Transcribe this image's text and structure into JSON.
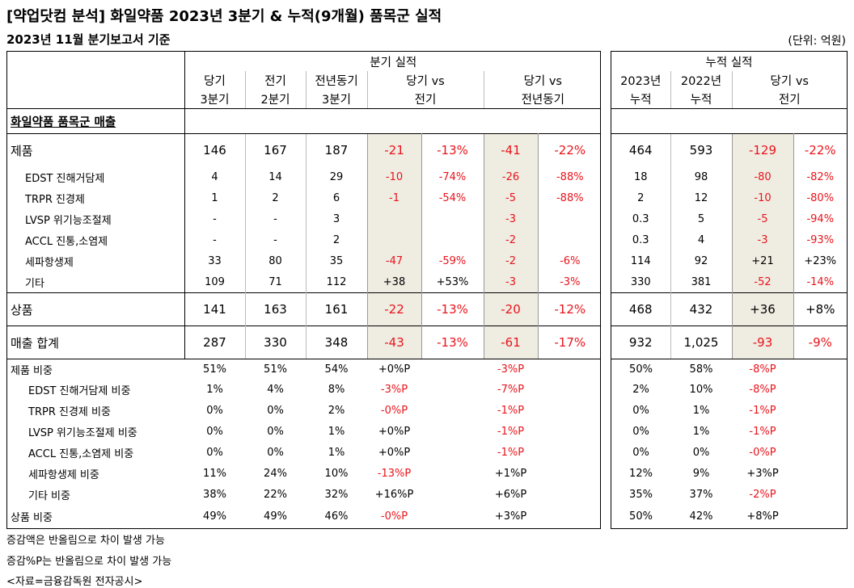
{
  "title": "[약업닷컴 분석] 화일약품 2023년 3분기 & 누적(9개월) 품목군 실적",
  "subtitle": "2023년 11월 분기보고서 기준",
  "unit": "(단위: 억원)",
  "header": {
    "quarter_group": "분기 실적",
    "cum_group": "누적 실적",
    "cur_q": [
      "당기",
      "3분기"
    ],
    "prev_q": [
      "전기",
      "2분기"
    ],
    "yoy_q": [
      "전년동기",
      "3분기"
    ],
    "vs_prev": [
      "당기 vs",
      "전기"
    ],
    "vs_yoy": [
      "당기 vs",
      "전년동기"
    ],
    "cum_2023": [
      "2023년",
      "누적"
    ],
    "cum_2022": [
      "2022년",
      "누적"
    ],
    "cum_vs": [
      "당기 vs",
      "전기"
    ]
  },
  "section_title": "화일약품 품목군 매출",
  "rows": [
    {
      "label": "제품",
      "cur": "146",
      "prev": "167",
      "yoy": "187",
      "d1": "-21",
      "p1": "-13%",
      "d2": "-41",
      "p2": "-22%",
      "c23": "464",
      "c22": "593",
      "cd": "-129",
      "cp": "-22%"
    },
    {
      "label": "EDST 진해거담제",
      "cur": "4",
      "prev": "14",
      "yoy": "29",
      "d1": "-10",
      "p1": "-74%",
      "d2": "-26",
      "p2": "-88%",
      "c23": "18",
      "c22": "98",
      "cd": "-80",
      "cp": "-82%"
    },
    {
      "label": "TRPR 진경제",
      "cur": "1",
      "prev": "2",
      "yoy": "6",
      "d1": "-1",
      "p1": "-54%",
      "d2": "-5",
      "p2": "-88%",
      "c23": "2",
      "c22": "12",
      "cd": "-10",
      "cp": "-80%"
    },
    {
      "label": "LVSP 위기능조절제",
      "cur": "-",
      "prev": "-",
      "yoy": "3",
      "d1": "",
      "p1": "",
      "d2": "-3",
      "p2": "",
      "c23": "0.3",
      "c22": "5",
      "cd": "-5",
      "cp": "-94%"
    },
    {
      "label": "ACCL 진통,소염제",
      "cur": "-",
      "prev": "-",
      "yoy": "2",
      "d1": "",
      "p1": "",
      "d2": "-2",
      "p2": "",
      "c23": "0.3",
      "c22": "4",
      "cd": "-3",
      "cp": "-93%"
    },
    {
      "label": "세파항생제",
      "cur": "33",
      "prev": "80",
      "yoy": "35",
      "d1": "-47",
      "p1": "-59%",
      "d2": "-2",
      "p2": "-6%",
      "c23": "114",
      "c22": "92",
      "cd": "+21",
      "cp": "+23%"
    },
    {
      "label": "기타",
      "cur": "109",
      "prev": "71",
      "yoy": "112",
      "d1": "+38",
      "p1": "+53%",
      "d2": "-3",
      "p2": "-3%",
      "c23": "330",
      "c22": "381",
      "cd": "-52",
      "cp": "-14%"
    },
    {
      "label": "상품",
      "cur": "141",
      "prev": "163",
      "yoy": "161",
      "d1": "-22",
      "p1": "-13%",
      "d2": "-20",
      "p2": "-12%",
      "c23": "468",
      "c22": "432",
      "cd": "+36",
      "cp": "+8%"
    },
    {
      "label": "매출 합계",
      "cur": "287",
      "prev": "330",
      "yoy": "348",
      "d1": "-43",
      "p1": "-13%",
      "d2": "-61",
      "p2": "-17%",
      "c23": "932",
      "c22": "1,025",
      "cd": "-93",
      "cp": "-9%"
    }
  ],
  "ratio_rows": [
    {
      "label": "제품 비중",
      "cur": "51%",
      "prev": "51%",
      "yoy": "54%",
      "d1": "+0%P",
      "d2": "-3%P",
      "c23": "50%",
      "c22": "58%",
      "cd": "-8%P"
    },
    {
      "label": "EDST 진해거담제 비중",
      "cur": "1%",
      "prev": "4%",
      "yoy": "8%",
      "d1": "-3%P",
      "d2": "-7%P",
      "c23": "2%",
      "c22": "10%",
      "cd": "-8%P"
    },
    {
      "label": "TRPR 진경제 비중",
      "cur": "0%",
      "prev": "0%",
      "yoy": "2%",
      "d1": "-0%P",
      "d2": "-1%P",
      "c23": "0%",
      "c22": "1%",
      "cd": "-1%P"
    },
    {
      "label": "LVSP 위기능조절제 비중",
      "cur": "0%",
      "prev": "0%",
      "yoy": "1%",
      "d1": "+0%P",
      "d2": "-1%P",
      "c23": "0%",
      "c22": "1%",
      "cd": "-1%P"
    },
    {
      "label": "ACCL 진통,소염제 비중",
      "cur": "0%",
      "prev": "0%",
      "yoy": "1%",
      "d1": "+0%P",
      "d2": "-1%P",
      "c23": "0%",
      "c22": "0%",
      "cd": "-0%P"
    },
    {
      "label": "세파항생제 비중",
      "cur": "11%",
      "prev": "24%",
      "yoy": "10%",
      "d1": "-13%P",
      "d2": "+1%P",
      "c23": "12%",
      "c22": "9%",
      "cd": "+3%P"
    },
    {
      "label": "기타 비중",
      "cur": "38%",
      "prev": "22%",
      "yoy": "32%",
      "d1": "+16%P",
      "d2": "+6%P",
      "c23": "35%",
      "c22": "37%",
      "cd": "-2%P"
    },
    {
      "label": "상품 비중",
      "cur": "49%",
      "prev": "49%",
      "yoy": "46%",
      "d1": "-0%P",
      "d2": "+3%P",
      "c23": "50%",
      "c22": "42%",
      "cd": "+8%P"
    }
  ],
  "footnotes": [
    "증감액은 반올림으로 차이 발생 가능",
    "증감%P는 반올림으로 차이 발생 가능",
    "<자료=금융감독원 전자공시>"
  ],
  "colors": {
    "negative": "#e8141b",
    "shade": "#efece2"
  }
}
